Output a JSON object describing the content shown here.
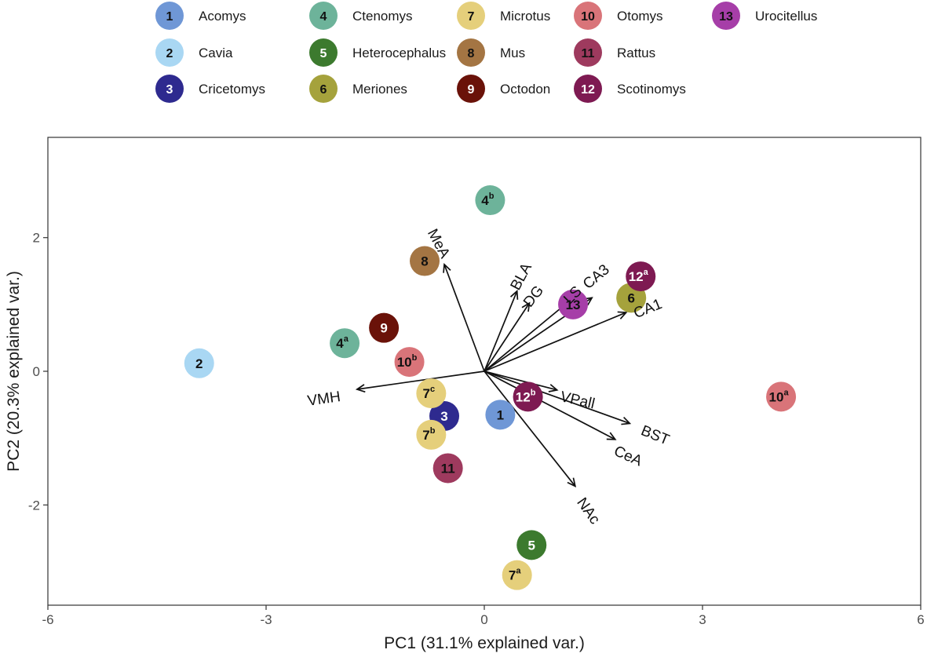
{
  "chart_data": {
    "type": "scatter",
    "subtype": "pca-biplot",
    "xlabel": "PC1 (31.1% explained var.)",
    "ylabel": "PC2 (20.3% explained var.)",
    "xlim": [
      -6.0,
      6.0
    ],
    "ylim": [
      -3.5,
      3.5
    ],
    "xticks": [
      -6,
      -3,
      0,
      3,
      6
    ],
    "yticks": [
      -2,
      0,
      2
    ],
    "legend": [
      {
        "num": "1",
        "name": "Acomys",
        "color": "#6F97D6",
        "text_color": "#111111"
      },
      {
        "num": "2",
        "name": "Cavia",
        "color": "#A9D7F3",
        "text_color": "#111111"
      },
      {
        "num": "3",
        "name": "Cricetomys",
        "color": "#2E2A8F",
        "text_color": "#ffffff"
      },
      {
        "num": "4",
        "name": "Ctenomys",
        "color": "#6DB39A",
        "text_color": "#111111"
      },
      {
        "num": "5",
        "name": "Heterocephalus",
        "color": "#3C7A2E",
        "text_color": "#ffffff"
      },
      {
        "num": "6",
        "name": "Meriones",
        "color": "#A5A23C",
        "text_color": "#111111"
      },
      {
        "num": "7",
        "name": "Microtus",
        "color": "#E5CF7B",
        "text_color": "#111111"
      },
      {
        "num": "8",
        "name": "Mus",
        "color": "#A47543",
        "text_color": "#111111"
      },
      {
        "num": "9",
        "name": "Octodon",
        "color": "#6A1209",
        "text_color": "#ffffff"
      },
      {
        "num": "10",
        "name": "Otomys",
        "color": "#D97479",
        "text_color": "#111111"
      },
      {
        "num": "11",
        "name": "Rattus",
        "color": "#9E3A5E",
        "text_color": "#111111"
      },
      {
        "num": "12",
        "name": "Scotinomys",
        "color": "#7E1A52",
        "text_color": "#ffffff"
      },
      {
        "num": "13",
        "name": "Urocitellus",
        "color": "#A63EA8",
        "text_color": "#111111"
      }
    ],
    "points": [
      {
        "label": "1",
        "sup": "",
        "species": "1",
        "x": 0.22,
        "y": -0.65
      },
      {
        "label": "2",
        "sup": "",
        "species": "2",
        "x": -3.92,
        "y": 0.12
      },
      {
        "label": "3",
        "sup": "",
        "species": "3",
        "x": -0.55,
        "y": -0.67
      },
      {
        "label": "4",
        "sup": "a",
        "species": "4",
        "x": -1.92,
        "y": 0.42
      },
      {
        "label": "4",
        "sup": "b",
        "species": "4",
        "x": 0.08,
        "y": 2.56
      },
      {
        "label": "5",
        "sup": "",
        "species": "5",
        "x": 0.65,
        "y": -2.6
      },
      {
        "label": "6",
        "sup": "",
        "species": "6",
        "x": 2.02,
        "y": 1.1
      },
      {
        "label": "7",
        "sup": "a",
        "species": "7",
        "x": 0.45,
        "y": -3.05
      },
      {
        "label": "7",
        "sup": "b",
        "species": "7",
        "x": -0.73,
        "y": -0.95
      },
      {
        "label": "7",
        "sup": "c",
        "species": "7",
        "x": -0.73,
        "y": -0.33
      },
      {
        "label": "8",
        "sup": "",
        "species": "8",
        "x": -0.82,
        "y": 1.65
      },
      {
        "label": "9",
        "sup": "",
        "species": "9",
        "x": -1.38,
        "y": 0.65
      },
      {
        "label": "10",
        "sup": "a",
        "species": "10",
        "x": 4.08,
        "y": -0.38
      },
      {
        "label": "10",
        "sup": "b",
        "species": "10",
        "x": -1.03,
        "y": 0.14
      },
      {
        "label": "11",
        "sup": "",
        "species": "11",
        "x": -0.5,
        "y": -1.45
      },
      {
        "label": "12",
        "sup": "a",
        "species": "12",
        "x": 2.15,
        "y": 1.42
      },
      {
        "label": "12",
        "sup": "b",
        "species": "12",
        "x": 0.6,
        "y": -0.38
      },
      {
        "label": "13",
        "sup": "",
        "species": "13",
        "x": 1.22,
        "y": 1.0
      }
    ],
    "loadings": [
      {
        "label": "MeA",
        "x": -0.55,
        "y": 1.6
      },
      {
        "label": "BLA",
        "x": 0.45,
        "y": 1.2
      },
      {
        "label": "DG",
        "x": 0.62,
        "y": 1.02
      },
      {
        "label": "LS",
        "x": 1.18,
        "y": 1.06
      },
      {
        "label": "CA3",
        "x": 1.48,
        "y": 1.1
      },
      {
        "label": "CA1",
        "x": 1.95,
        "y": 0.88
      },
      {
        "label": "VMH",
        "x": -1.75,
        "y": -0.27
      },
      {
        "label": "VPall",
        "x": 1.0,
        "y": -0.28
      },
      {
        "label": "BST",
        "x": 2.0,
        "y": -0.78
      },
      {
        "label": "CeA",
        "x": 1.8,
        "y": -1.02
      },
      {
        "label": "NAc",
        "x": 1.25,
        "y": -1.72
      }
    ]
  }
}
